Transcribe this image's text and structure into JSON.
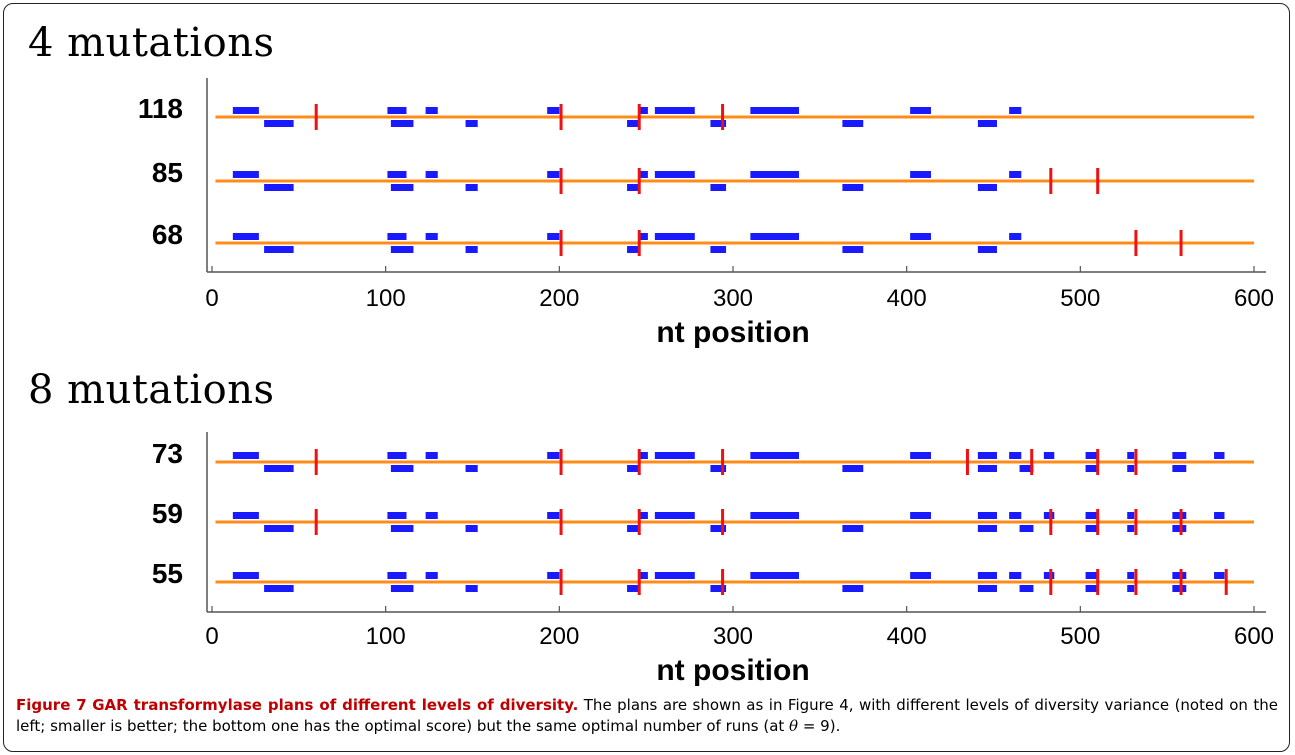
{
  "chart_data": [
    {
      "type": "diagram-track",
      "title": "4 mutations",
      "xlabel": "nt position",
      "xlim": [
        0,
        600
      ],
      "xticks": [
        0,
        100,
        200,
        300,
        400,
        500,
        600
      ],
      "segments_top": [
        [
          12,
          27
        ],
        [
          101,
          112
        ],
        [
          123,
          130
        ],
        [
          193,
          200
        ],
        [
          246,
          251
        ],
        [
          255,
          278
        ],
        [
          310,
          338
        ],
        [
          402,
          414
        ],
        [
          459,
          466
        ]
      ],
      "segments_bottom": [
        [
          30,
          47
        ],
        [
          103,
          116
        ],
        [
          146,
          153
        ],
        [
          239,
          246
        ],
        [
          287,
          296
        ],
        [
          363,
          375
        ],
        [
          441,
          452
        ]
      ],
      "plans": [
        {
          "label": "118",
          "cuts": [
            60,
            201,
            246,
            294
          ]
        },
        {
          "label": "85",
          "cuts": [
            201,
            246,
            483,
            510
          ]
        },
        {
          "label": "68",
          "cuts": [
            201,
            246,
            532,
            558
          ]
        }
      ]
    },
    {
      "type": "diagram-track",
      "title": "8 mutations",
      "xlabel": "nt position",
      "xlim": [
        0,
        600
      ],
      "xticks": [
        0,
        100,
        200,
        300,
        400,
        500,
        600
      ],
      "segments_top": [
        [
          12,
          27
        ],
        [
          101,
          112
        ],
        [
          123,
          130
        ],
        [
          193,
          200
        ],
        [
          246,
          251
        ],
        [
          255,
          278
        ],
        [
          310,
          338
        ],
        [
          402,
          414
        ],
        [
          441,
          452
        ],
        [
          459,
          466
        ],
        [
          479,
          485
        ],
        [
          503,
          510
        ],
        [
          527,
          531
        ],
        [
          553,
          561
        ],
        [
          577,
          583
        ]
      ],
      "segments_bottom": [
        [
          30,
          47
        ],
        [
          103,
          116
        ],
        [
          146,
          153
        ],
        [
          239,
          246
        ],
        [
          287,
          296
        ],
        [
          363,
          375
        ],
        [
          441,
          452
        ],
        [
          465,
          473
        ],
        [
          503,
          510
        ],
        [
          527,
          531
        ],
        [
          553,
          561
        ]
      ],
      "plans": [
        {
          "label": "73",
          "cuts": [
            60,
            201,
            246,
            294,
            435,
            472,
            510,
            532
          ]
        },
        {
          "label": "59",
          "cuts": [
            60,
            201,
            246,
            294,
            483,
            510,
            532,
            558
          ]
        },
        {
          "label": "55",
          "cuts": [
            201,
            246,
            294,
            483,
            510,
            532,
            558,
            584
          ]
        }
      ]
    }
  ],
  "colors": {
    "baseline": "#ff8c1a",
    "segment": "#1a1aff",
    "cut": "#ee1111",
    "axis": "#555555"
  },
  "caption": {
    "figure_label": "Figure 7",
    "bold_title": "GAR transformylase plans of different levels of diversity.",
    "text": " The plans are shown as in Figure 4, with different levels of diversity variance (noted on the left; smaller is better; the bottom one has the optimal score) but the same optimal number of runs (at ",
    "theta_symbol": "θ",
    "theta_value": " = 9)."
  }
}
